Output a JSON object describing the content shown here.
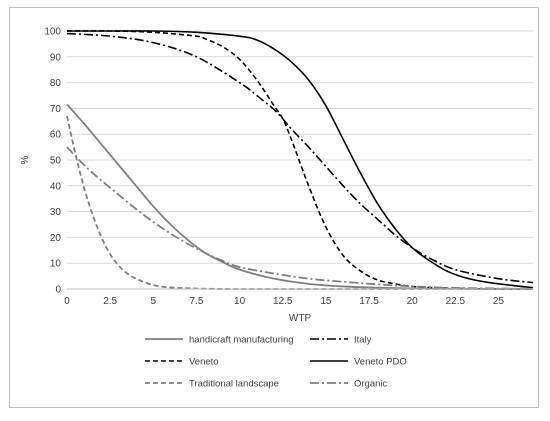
{
  "chart_data": {
    "type": "line",
    "title": "",
    "xlabel": "WTP",
    "ylabel": "%",
    "xlim": [
      0,
      27
    ],
    "ylim": [
      0,
      100
    ],
    "xticks": [
      "0",
      "2.5",
      "5",
      "7.5",
      "10",
      "12.5",
      "15",
      "17.5",
      "20",
      "22.5",
      "25"
    ],
    "yticks": [
      "0",
      "10",
      "20",
      "30",
      "40",
      "50",
      "60",
      "70",
      "80",
      "90",
      "100"
    ],
    "grid": "horizontal",
    "legend_position": "bottom",
    "series": [
      {
        "name": "handicraft manufacturing",
        "color": "#7f7f7f",
        "dash": "solid",
        "x": [
          0,
          1,
          2,
          3,
          4,
          5,
          6,
          7,
          8,
          9,
          10,
          12,
          14,
          16,
          18,
          20,
          22,
          25,
          27
        ],
        "y": [
          71.5,
          64,
          56,
          48,
          40,
          32,
          25,
          19,
          14,
          10.5,
          7.5,
          4,
          2,
          1,
          0.5,
          0.2,
          0.1,
          0,
          0
        ]
      },
      {
        "name": "Italy",
        "color": "#000000",
        "dash": "dashdot",
        "x": [
          0,
          2.5,
          5,
          7.5,
          10,
          11,
          12,
          12.5,
          13,
          14,
          15,
          16,
          17,
          18,
          19,
          20,
          21,
          22.5,
          25,
          27
        ],
        "y": [
          99,
          98,
          95.5,
          90,
          80,
          75,
          69.5,
          66,
          62,
          55,
          47.5,
          40,
          33,
          27,
          21,
          16,
          12,
          7.5,
          4,
          2.5
        ]
      },
      {
        "name": "Veneto",
        "color": "#000000",
        "dash": "dash",
        "x": [
          0,
          2.5,
          5,
          7.5,
          8,
          9,
          10,
          11,
          12,
          12.5,
          13,
          14,
          15,
          16,
          17,
          18,
          19,
          20,
          22,
          25,
          27
        ],
        "y": [
          100,
          100,
          99.5,
          98,
          97,
          94,
          89,
          81,
          71,
          66,
          58,
          40,
          24,
          13,
          7,
          3.5,
          2,
          1,
          0.3,
          0,
          0
        ]
      },
      {
        "name": "Veneto PDO",
        "color": "#000000",
        "dash": "solid",
        "x": [
          0,
          2.5,
          5,
          7.5,
          10,
          11,
          12,
          13,
          14,
          15,
          16,
          17,
          18,
          19,
          20,
          21,
          22,
          23,
          24,
          25,
          27
        ],
        "y": [
          100,
          100,
          100,
          99.5,
          98,
          96.5,
          93,
          88,
          81,
          71,
          58,
          45,
          33,
          23.5,
          16,
          11,
          7,
          4.5,
          3,
          2,
          0.5
        ]
      },
      {
        "name": "Traditional landscape",
        "color": "#7f7f7f",
        "dash": "dash",
        "x": [
          0,
          0.5,
          1,
          1.5,
          2,
          2.5,
          3,
          3.5,
          4,
          5,
          6,
          7,
          8,
          10,
          15,
          20,
          27
        ],
        "y": [
          67,
          52,
          39,
          28.5,
          20,
          13.5,
          9,
          6,
          4,
          1.5,
          0.6,
          0.3,
          0.1,
          0,
          0,
          0,
          0
        ]
      },
      {
        "name": "Organic",
        "color": "#7f7f7f",
        "dash": "dashdot",
        "x": [
          0,
          1,
          2,
          3,
          4,
          5,
          6,
          7,
          8,
          9,
          10,
          12,
          14,
          16,
          18,
          20,
          22,
          25,
          27
        ],
        "y": [
          55,
          48,
          42,
          36.5,
          31,
          26,
          21.5,
          17.5,
          14,
          11,
          8.5,
          6,
          4,
          2.8,
          1.8,
          1,
          0.5,
          0.2,
          0.1
        ]
      }
    ]
  }
}
